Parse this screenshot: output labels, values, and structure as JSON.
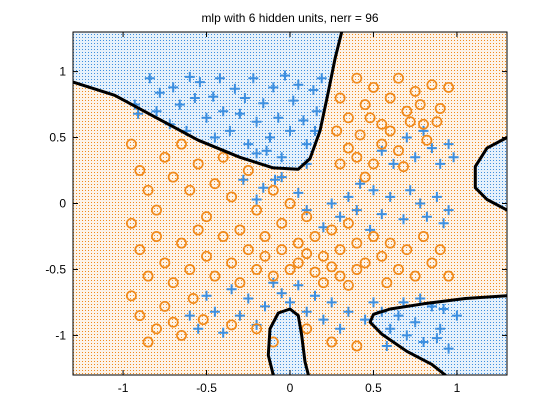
{
  "chart_data": {
    "type": "scatter",
    "title": "mlp with 6 hidden units, nerr = 96",
    "xlabel": "",
    "ylabel": "",
    "xlim": [
      -1.3,
      1.3
    ],
    "ylim": [
      -1.3,
      1.3
    ],
    "x_ticks": [
      -1,
      -0.5,
      0,
      0.5,
      1
    ],
    "x_tick_labels": [
      "-1",
      "-0.5",
      "0",
      "0.5",
      "1"
    ],
    "y_ticks": [
      -1,
      -0.5,
      0,
      0.5,
      1
    ],
    "y_tick_labels": [
      "-1",
      "-0.5",
      "0",
      "0.5",
      "1"
    ],
    "grid": false,
    "colors": {
      "class_plus": "#3d8fe0",
      "class_circle": "#f08a1c",
      "region_plus_bg": "#d6e9f8",
      "region_circle_bg": "#fbe7d2",
      "boundary": "#000000"
    },
    "series": [
      {
        "marker": "plus",
        "points": [
          [
            -0.93,
            0.75
          ],
          [
            -0.91,
            0.68
          ],
          [
            -0.84,
            0.95
          ],
          [
            -0.8,
            0.7
          ],
          [
            -0.78,
            0.84
          ],
          [
            -0.72,
            0.6
          ],
          [
            -0.7,
            0.88
          ],
          [
            -0.66,
            0.75
          ],
          [
            -0.62,
            0.55
          ],
          [
            -0.6,
            0.96
          ],
          [
            -0.57,
            0.8
          ],
          [
            -0.54,
            0.92
          ],
          [
            -0.5,
            0.65
          ],
          [
            -0.46,
            0.81
          ],
          [
            -0.42,
            0.95
          ],
          [
            -0.4,
            0.7
          ],
          [
            -0.36,
            0.55
          ],
          [
            -0.33,
            0.87
          ],
          [
            -0.3,
            0.68
          ],
          [
            -0.27,
            0.8
          ],
          [
            -0.22,
            0.95
          ],
          [
            -0.2,
            0.62
          ],
          [
            -0.16,
            0.76
          ],
          [
            -0.12,
            0.5
          ],
          [
            -0.1,
            0.88
          ],
          [
            -0.07,
            0.65
          ],
          [
            -0.03,
            0.97
          ],
          [
            0.0,
            0.55
          ],
          [
            0.02,
            0.78
          ],
          [
            0.05,
            0.9
          ],
          [
            0.08,
            0.63
          ],
          [
            0.1,
            0.45
          ],
          [
            0.14,
            0.86
          ],
          [
            0.16,
            0.7
          ],
          [
            0.19,
            0.95
          ],
          [
            -0.14,
            0.4
          ],
          [
            -0.2,
            0.38
          ],
          [
            -0.05,
            0.35
          ],
          [
            0.1,
            0.3
          ],
          [
            0.15,
            0.55
          ],
          [
            -0.45,
            0.5
          ],
          [
            -0.25,
            0.45
          ],
          [
            -0.09,
            0.18
          ],
          [
            -0.2,
            0.03
          ],
          [
            -0.28,
            0.18
          ],
          [
            -0.16,
            0.12
          ],
          [
            0.25,
            0.0
          ],
          [
            0.3,
            -0.1
          ],
          [
            0.35,
            0.05
          ],
          [
            0.4,
            -0.05
          ],
          [
            0.42,
            0.15
          ],
          [
            0.5,
            0.1
          ],
          [
            0.55,
            -0.08
          ],
          [
            0.6,
            0.05
          ],
          [
            0.68,
            -0.12
          ],
          [
            0.72,
            0.1
          ],
          [
            0.78,
            0.0
          ],
          [
            0.82,
            -0.1
          ],
          [
            0.88,
            0.05
          ],
          [
            0.92,
            -0.15
          ],
          [
            0.95,
            -0.05
          ],
          [
            0.62,
            0.3
          ],
          [
            0.75,
            0.35
          ],
          [
            0.85,
            0.42
          ],
          [
            0.9,
            0.3
          ],
          [
            0.95,
            0.45
          ],
          [
            0.55,
            0.4
          ],
          [
            0.7,
            0.5
          ],
          [
            0.8,
            0.55
          ],
          [
            0.98,
            0.35
          ],
          [
            0.48,
            -0.2
          ],
          [
            0.2,
            -0.18
          ],
          [
            0.1,
            -0.05
          ],
          [
            0.05,
            0.08
          ],
          [
            -0.05,
            0.2
          ],
          [
            0.55,
            -0.82
          ],
          [
            0.6,
            -0.95
          ],
          [
            0.65,
            -0.85
          ],
          [
            0.7,
            -1.0
          ],
          [
            0.75,
            -0.9
          ],
          [
            0.8,
            -1.05
          ],
          [
            0.85,
            -0.78
          ],
          [
            0.9,
            -0.95
          ],
          [
            0.95,
            -1.1
          ],
          [
            1.0,
            -0.85
          ],
          [
            0.68,
            -0.75
          ],
          [
            0.78,
            -0.72
          ],
          [
            0.88,
            -1.02
          ],
          [
            0.92,
            -0.8
          ],
          [
            0.5,
            -0.75
          ],
          [
            0.45,
            -0.88
          ],
          [
            0.58,
            -1.08
          ],
          [
            -0.5,
            -0.7
          ],
          [
            -0.45,
            -0.82
          ],
          [
            -0.4,
            -0.98
          ],
          [
            -0.3,
            -0.85
          ],
          [
            -0.25,
            -0.72
          ],
          [
            -0.2,
            -0.92
          ],
          [
            -0.15,
            -0.78
          ],
          [
            -0.1,
            -0.6
          ],
          [
            -0.05,
            -0.68
          ],
          [
            0.0,
            -0.75
          ],
          [
            0.05,
            -0.62
          ],
          [
            0.1,
            -0.82
          ],
          [
            0.15,
            -0.7
          ],
          [
            0.2,
            -0.88
          ],
          [
            0.25,
            -0.75
          ],
          [
            0.3,
            -0.95
          ],
          [
            0.35,
            -0.82
          ],
          [
            -0.35,
            -0.65
          ],
          [
            -0.6,
            -0.85
          ],
          [
            -0.55,
            -0.95
          ]
        ]
      },
      {
        "marker": "circle",
        "points": [
          [
            0.3,
            0.8
          ],
          [
            0.35,
            0.65
          ],
          [
            0.4,
            0.95
          ],
          [
            0.45,
            0.75
          ],
          [
            0.5,
            0.88
          ],
          [
            0.55,
            0.6
          ],
          [
            0.6,
            0.8
          ],
          [
            0.65,
            0.95
          ],
          [
            0.7,
            0.7
          ],
          [
            0.75,
            0.85
          ],
          [
            0.8,
            0.6
          ],
          [
            0.85,
            0.9
          ],
          [
            0.9,
            0.72
          ],
          [
            0.95,
            0.88
          ],
          [
            0.55,
            0.45
          ],
          [
            0.6,
            0.55
          ],
          [
            0.65,
            0.4
          ],
          [
            0.72,
            0.62
          ],
          [
            0.78,
            0.75
          ],
          [
            0.82,
            0.48
          ],
          [
            0.88,
            0.62
          ],
          [
            0.42,
            0.52
          ],
          [
            0.35,
            0.42
          ],
          [
            0.48,
            0.65
          ],
          [
            0.68,
            0.28
          ],
          [
            0.5,
            0.3
          ],
          [
            0.45,
            0.2
          ],
          [
            0.4,
            0.35
          ],
          [
            0.3,
            0.3
          ],
          [
            0.28,
            0.55
          ],
          [
            -0.95,
            0.45
          ],
          [
            -0.9,
            0.25
          ],
          [
            -0.85,
            0.1
          ],
          [
            -0.8,
            -0.05
          ],
          [
            -0.75,
            0.35
          ],
          [
            -0.7,
            0.2
          ],
          [
            -0.65,
            0.45
          ],
          [
            -0.6,
            0.1
          ],
          [
            -0.55,
            0.3
          ],
          [
            -0.5,
            -0.1
          ],
          [
            -0.45,
            0.15
          ],
          [
            -0.4,
            0.35
          ],
          [
            -0.35,
            0.05
          ],
          [
            -0.3,
            -0.2
          ],
          [
            -0.25,
            0.25
          ],
          [
            -0.2,
            -0.05
          ],
          [
            -0.15,
            -0.25
          ],
          [
            -0.1,
            0.1
          ],
          [
            -0.05,
            -0.15
          ],
          [
            0.0,
            0.0
          ],
          [
            0.05,
            -0.3
          ],
          [
            0.1,
            -0.1
          ],
          [
            0.15,
            -0.25
          ],
          [
            0.2,
            -0.4
          ],
          [
            0.25,
            -0.2
          ],
          [
            0.3,
            -0.35
          ],
          [
            0.35,
            -0.15
          ],
          [
            0.4,
            -0.3
          ],
          [
            0.45,
            -0.45
          ],
          [
            0.5,
            -0.25
          ],
          [
            0.55,
            -0.4
          ],
          [
            0.6,
            -0.3
          ],
          [
            0.65,
            -0.5
          ],
          [
            0.7,
            -0.35
          ],
          [
            0.75,
            -0.55
          ],
          [
            0.8,
            -0.25
          ],
          [
            0.85,
            -0.45
          ],
          [
            0.9,
            -0.35
          ],
          [
            0.95,
            -0.55
          ],
          [
            0.58,
            -0.6
          ],
          [
            -0.95,
            -0.15
          ],
          [
            -0.9,
            -0.35
          ],
          [
            -0.85,
            -0.55
          ],
          [
            -0.8,
            -0.25
          ],
          [
            -0.75,
            -0.45
          ],
          [
            -0.7,
            -0.6
          ],
          [
            -0.65,
            -0.3
          ],
          [
            -0.6,
            -0.5
          ],
          [
            -0.55,
            -0.2
          ],
          [
            -0.5,
            -0.4
          ],
          [
            -0.45,
            -0.55
          ],
          [
            -0.4,
            -0.25
          ],
          [
            -0.35,
            -0.45
          ],
          [
            -0.3,
            -0.6
          ],
          [
            -0.25,
            -0.35
          ],
          [
            -0.2,
            -0.5
          ],
          [
            -0.15,
            -0.4
          ],
          [
            -0.1,
            -0.55
          ],
          [
            -0.05,
            -0.35
          ],
          [
            0.0,
            -0.5
          ],
          [
            0.05,
            -0.45
          ],
          [
            0.1,
            -0.38
          ],
          [
            0.15,
            -0.52
          ],
          [
            0.2,
            -0.6
          ],
          [
            0.25,
            -0.48
          ],
          [
            0.3,
            -0.55
          ],
          [
            0.35,
            -0.62
          ],
          [
            0.4,
            -0.5
          ],
          [
            -0.95,
            -0.7
          ],
          [
            -0.9,
            -0.85
          ],
          [
            -0.85,
            -1.05
          ],
          [
            -0.8,
            -0.95
          ],
          [
            -0.75,
            -0.78
          ],
          [
            -0.7,
            -0.9
          ],
          [
            -0.65,
            -1.0
          ],
          [
            -0.58,
            -0.72
          ],
          [
            -0.52,
            -0.88
          ],
          [
            -0.35,
            -0.92
          ],
          [
            -0.2,
            -0.95
          ],
          [
            -0.1,
            -1.05
          ],
          [
            0.1,
            -0.95
          ],
          [
            0.25,
            -1.05
          ],
          [
            0.4,
            -1.08
          ]
        ]
      }
    ],
    "boundaries": [
      [
        [
          -1.3,
          0.92
        ],
        [
          -1.05,
          0.82
        ],
        [
          -0.8,
          0.65
        ],
        [
          -0.55,
          0.48
        ],
        [
          -0.3,
          0.35
        ],
        [
          -0.1,
          0.27
        ],
        [
          0.05,
          0.26
        ],
        [
          0.12,
          0.34
        ],
        [
          0.18,
          0.55
        ],
        [
          0.23,
          0.85
        ],
        [
          0.27,
          1.1
        ],
        [
          0.31,
          1.3
        ]
      ],
      [
        [
          1.3,
          0.5
        ],
        [
          1.18,
          0.42
        ],
        [
          1.11,
          0.28
        ],
        [
          1.11,
          0.12
        ],
        [
          1.18,
          0.03
        ],
        [
          1.3,
          -0.05
        ]
      ],
      [
        [
          -0.1,
          -1.3
        ],
        [
          -0.13,
          -1.15
        ],
        [
          -0.12,
          -0.95
        ],
        [
          -0.07,
          -0.83
        ],
        [
          0.0,
          -0.8
        ],
        [
          0.05,
          -0.85
        ],
        [
          0.07,
          -1.0
        ],
        [
          0.09,
          -1.2
        ],
        [
          0.11,
          -1.3
        ]
      ],
      [
        [
          1.3,
          -0.7
        ],
        [
          1.05,
          -0.72
        ],
        [
          0.8,
          -0.76
        ],
        [
          0.6,
          -0.8
        ],
        [
          0.5,
          -0.84
        ],
        [
          0.48,
          -0.9
        ],
        [
          0.55,
          -0.99
        ],
        [
          0.7,
          -1.12
        ],
        [
          0.85,
          -1.22
        ],
        [
          0.93,
          -1.3
        ]
      ]
    ]
  }
}
